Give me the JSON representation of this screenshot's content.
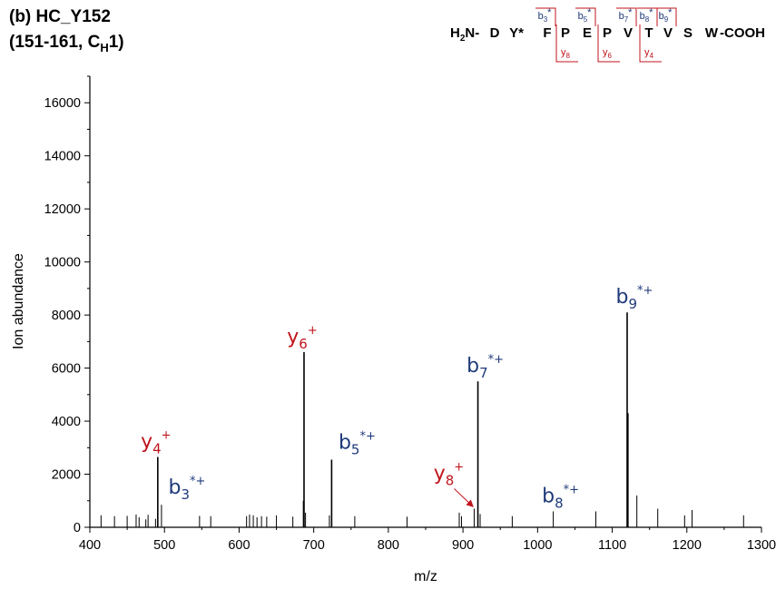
{
  "panel": {
    "label": "(b) HC_Y152",
    "region_prefix": "(151-161, C",
    "region_sub": "H",
    "region_suffix": "1)"
  },
  "sequence": {
    "n_term_main": "H",
    "n_term_sub": "2",
    "n_term_suffix": "N-",
    "residues": [
      "D",
      "Y*",
      "F",
      "P",
      "E",
      "P",
      "V",
      "T",
      "V",
      "S",
      "W"
    ],
    "c_term": "-COOH",
    "b_fragments": [
      {
        "letter": "b",
        "sub": "3",
        "mark": "*"
      },
      {
        "letter": "b",
        "sub": "5",
        "mark": "*"
      },
      {
        "letter": "b",
        "sub": "7",
        "mark": "*"
      },
      {
        "letter": "b",
        "sub": "8",
        "mark": "*"
      },
      {
        "letter": "b",
        "sub": "9",
        "mark": "*"
      }
    ],
    "y_fragments": [
      {
        "letter": "y",
        "sub": "8"
      },
      {
        "letter": "y",
        "sub": "6"
      },
      {
        "letter": "y",
        "sub": "4"
      }
    ]
  },
  "colors": {
    "b_ion": "#1f3a7a",
    "y_ion": "#c0141c",
    "peak": "#000000",
    "axis": "#000000"
  },
  "chart_data": {
    "type": "bar",
    "xlabel": "m/z",
    "ylabel": "Ion abundance",
    "xlim": [
      400,
      1300
    ],
    "ylim": [
      0,
      17000
    ],
    "xticks": [
      400,
      500,
      600,
      700,
      800,
      900,
      1000,
      1100,
      1200,
      1300
    ],
    "yticks": [
      0,
      2000,
      4000,
      6000,
      8000,
      10000,
      12000,
      14000,
      16000
    ],
    "grid": false,
    "peaks": [
      {
        "mz": 415,
        "abundance": 450
      },
      {
        "mz": 433,
        "abundance": 420
      },
      {
        "mz": 450,
        "abundance": 430
      },
      {
        "mz": 462,
        "abundance": 480
      },
      {
        "mz": 466,
        "abundance": 380
      },
      {
        "mz": 475,
        "abundance": 300
      },
      {
        "mz": 478,
        "abundance": 470
      },
      {
        "mz": 488,
        "abundance": 320
      },
      {
        "mz": 491,
        "abundance": 2650
      },
      {
        "mz": 496,
        "abundance": 850
      },
      {
        "mz": 547,
        "abundance": 430
      },
      {
        "mz": 562,
        "abundance": 420
      },
      {
        "mz": 610,
        "abundance": 420
      },
      {
        "mz": 614,
        "abundance": 480
      },
      {
        "mz": 619,
        "abundance": 450
      },
      {
        "mz": 624,
        "abundance": 380
      },
      {
        "mz": 630,
        "abundance": 420
      },
      {
        "mz": 637,
        "abundance": 400
      },
      {
        "mz": 650,
        "abundance": 450
      },
      {
        "mz": 672,
        "abundance": 400
      },
      {
        "mz": 686,
        "abundance": 1000
      },
      {
        "mz": 687,
        "abundance": 6600
      },
      {
        "mz": 689,
        "abundance": 550
      },
      {
        "mz": 721,
        "abundance": 450
      },
      {
        "mz": 724,
        "abundance": 2550
      },
      {
        "mz": 755,
        "abundance": 420
      },
      {
        "mz": 825,
        "abundance": 400
      },
      {
        "mz": 895,
        "abundance": 550
      },
      {
        "mz": 898,
        "abundance": 420
      },
      {
        "mz": 915,
        "abundance": 700
      },
      {
        "mz": 920,
        "abundance": 5500
      },
      {
        "mz": 923,
        "abundance": 500
      },
      {
        "mz": 966,
        "abundance": 420
      },
      {
        "mz": 1021,
        "abundance": 600
      },
      {
        "mz": 1078,
        "abundance": 600
      },
      {
        "mz": 1120,
        "abundance": 8100
      },
      {
        "mz": 1121,
        "abundance": 4300
      },
      {
        "mz": 1133,
        "abundance": 1200
      },
      {
        "mz": 1161,
        "abundance": 700
      },
      {
        "mz": 1197,
        "abundance": 450
      },
      {
        "mz": 1207,
        "abundance": 650
      },
      {
        "mz": 1276,
        "abundance": 450
      }
    ],
    "annotations": [
      {
        "letter": "y",
        "sub": "4",
        "sup": "+",
        "mz": 491,
        "abundance": 2650,
        "ion": "y",
        "arrow": false
      },
      {
        "letter": "b",
        "sub": "3",
        "sup": "*+",
        "mz": 496,
        "abundance": 850,
        "ion": "b",
        "arrow": false
      },
      {
        "letter": "y",
        "sub": "6",
        "sup": "+",
        "mz": 687,
        "abundance": 6600,
        "ion": "y",
        "arrow": false
      },
      {
        "letter": "b",
        "sub": "5",
        "sup": "*+",
        "mz": 724,
        "abundance": 2550,
        "ion": "b",
        "arrow": false
      },
      {
        "letter": "y",
        "sub": "8",
        "sup": "+",
        "mz": 915,
        "abundance": 700,
        "ion": "y",
        "arrow": true
      },
      {
        "letter": "b",
        "sub": "7",
        "sup": "*+",
        "mz": 920,
        "abundance": 5500,
        "ion": "b",
        "arrow": false
      },
      {
        "letter": "b",
        "sub": "8",
        "sup": "*+",
        "mz": 1021,
        "abundance": 600,
        "ion": "b",
        "arrow": false
      },
      {
        "letter": "b",
        "sub": "9",
        "sup": "*+",
        "mz": 1120,
        "abundance": 8100,
        "ion": "b",
        "arrow": false
      }
    ]
  }
}
